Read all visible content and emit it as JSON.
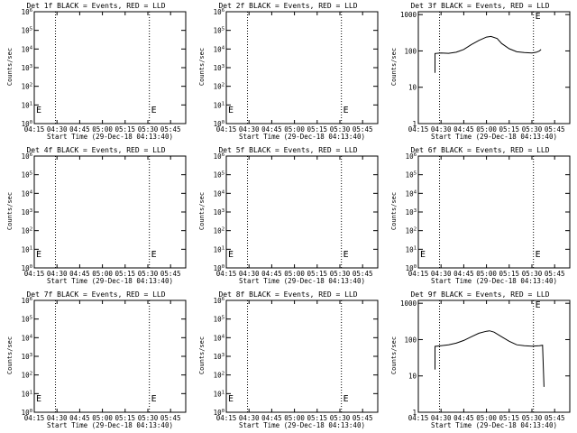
{
  "chart_data": [
    {
      "type": "line",
      "title": "Det 1f BLACK = Events, RED = LLD",
      "ylabel": "Counts/sec",
      "xlabel": "Start Time (29-Dec-18 04:13:40)",
      "x_ticks": [
        "04:15",
        "04:30",
        "04:45",
        "05:00",
        "05:15",
        "05:30",
        "05:45"
      ],
      "y_ticks": [
        "10^0",
        "10^1",
        "10^2",
        "10^3",
        "10^4",
        "10^5",
        "10^6"
      ],
      "y_scale": "log",
      "ylim": [
        1,
        1000000
      ],
      "xlim": [
        "04:15",
        "05:55"
      ],
      "marker_lines": [
        "04:29",
        "05:31"
      ],
      "markers": [
        {
          "label": "E",
          "x": "04:15"
        },
        {
          "label": "E",
          "x": "05:31"
        }
      ],
      "series": []
    },
    {
      "type": "line",
      "title": "Det 2f BLACK = Events, RED = LLD",
      "ylabel": "Counts/sec",
      "xlabel": "Start Time (29-Dec-18 04:13:40)",
      "x_ticks": [
        "04:15",
        "04:30",
        "04:45",
        "05:00",
        "05:15",
        "05:30",
        "05:45"
      ],
      "y_ticks": [
        "10^0",
        "10^1",
        "10^2",
        "10^3",
        "10^4",
        "10^5",
        "10^6"
      ],
      "y_scale": "log",
      "ylim": [
        1,
        1000000
      ],
      "xlim": [
        "04:15",
        "05:55"
      ],
      "marker_lines": [
        "04:29",
        "05:31"
      ],
      "markers": [
        {
          "label": "E",
          "x": "04:15"
        },
        {
          "label": "E",
          "x": "05:31"
        }
      ],
      "series": []
    },
    {
      "type": "line",
      "title": "Det 3f BLACK = Events, RED = LLD",
      "ylabel": "Counts/sec",
      "xlabel": "Start Time (29-Dec-18 04:13:40)",
      "x_ticks": [
        "04:15",
        "04:30",
        "04:45",
        "05:00",
        "05:15",
        "05:30",
        "05:45"
      ],
      "y_ticks": [
        "1",
        "10",
        "100",
        "1000"
      ],
      "y_scale": "log",
      "ylim": [
        1,
        1200
      ],
      "xlim": [
        "04:15",
        "05:55"
      ],
      "marker_lines": [
        "04:29",
        "05:31"
      ],
      "markers": [
        {
          "label": "E",
          "x": "05:31"
        }
      ],
      "series": [
        {
          "color": "#000000",
          "points": [
            [
              "04:26",
              25
            ],
            [
              "04:26",
              85
            ],
            [
              "04:30",
              88
            ],
            [
              "04:35",
              86
            ],
            [
              "04:40",
              92
            ],
            [
              "04:45",
              110
            ],
            [
              "04:50",
              150
            ],
            [
              "04:55",
              195
            ],
            [
              "05:00",
              240
            ],
            [
              "05:03",
              250
            ],
            [
              "05:07",
              220
            ],
            [
              "05:10",
              160
            ],
            [
              "05:15",
              115
            ],
            [
              "05:20",
              95
            ],
            [
              "05:25",
              90
            ],
            [
              "05:30",
              88
            ],
            [
              "05:33",
              92
            ],
            [
              "05:35",
              100
            ],
            [
              "05:36",
              110
            ]
          ]
        }
      ]
    },
    {
      "type": "line",
      "title": "Det 4f BLACK = Events, RED = LLD",
      "ylabel": "Counts/sec",
      "xlabel": "Start Time (29-Dec-18 04:13:40)",
      "x_ticks": [
        "04:15",
        "04:30",
        "04:45",
        "05:00",
        "05:15",
        "05:30",
        "05:45"
      ],
      "y_ticks": [
        "10^0",
        "10^1",
        "10^2",
        "10^3",
        "10^4",
        "10^5",
        "10^6"
      ],
      "y_scale": "log",
      "ylim": [
        1,
        1000000
      ],
      "xlim": [
        "04:15",
        "05:55"
      ],
      "marker_lines": [
        "04:29",
        "05:31"
      ],
      "markers": [
        {
          "label": "E",
          "x": "04:15"
        },
        {
          "label": "E",
          "x": "05:31"
        }
      ],
      "series": []
    },
    {
      "type": "line",
      "title": "Det 5f BLACK = Events, RED = LLD",
      "ylabel": "Counts/sec",
      "xlabel": "Start Time (29-Dec-18 04:13:40)",
      "x_ticks": [
        "04:15",
        "04:30",
        "04:45",
        "05:00",
        "05:15",
        "05:30",
        "05:45"
      ],
      "y_ticks": [
        "10^0",
        "10^1",
        "10^2",
        "10^3",
        "10^4",
        "10^5",
        "10^6"
      ],
      "y_scale": "log",
      "ylim": [
        1,
        1000000
      ],
      "xlim": [
        "04:15",
        "05:55"
      ],
      "marker_lines": [
        "04:29",
        "05:31"
      ],
      "markers": [
        {
          "label": "E",
          "x": "04:15"
        },
        {
          "label": "E",
          "x": "05:31"
        }
      ],
      "series": []
    },
    {
      "type": "line",
      "title": "Det 6f BLACK = Events, RED = LLD",
      "ylabel": "Counts/sec",
      "xlabel": "Start Time (29-Dec-18 04:13:40)",
      "x_ticks": [
        "04:15",
        "04:30",
        "04:45",
        "05:00",
        "05:15",
        "05:30",
        "05:45"
      ],
      "y_ticks": [
        "10^0",
        "10^1",
        "10^2",
        "10^3",
        "10^4",
        "10^5",
        "10^6"
      ],
      "y_scale": "log",
      "ylim": [
        1,
        1000000
      ],
      "xlim": [
        "04:15",
        "05:55"
      ],
      "marker_lines": [
        "04:29",
        "05:31"
      ],
      "markers": [
        {
          "label": "E",
          "x": "04:15"
        },
        {
          "label": "E",
          "x": "05:31"
        }
      ],
      "series": []
    },
    {
      "type": "line",
      "title": "Det 7f BLACK = Events, RED = LLD",
      "ylabel": "Counts/sec",
      "xlabel": "Start Time (29-Dec-18 04:13:40)",
      "x_ticks": [
        "04:15",
        "04:30",
        "04:45",
        "05:00",
        "05:15",
        "05:30",
        "05:45"
      ],
      "y_ticks": [
        "10^0",
        "10^1",
        "10^2",
        "10^3",
        "10^4",
        "10^5",
        "10^6"
      ],
      "y_scale": "log",
      "ylim": [
        1,
        1000000
      ],
      "xlim": [
        "04:15",
        "05:55"
      ],
      "marker_lines": [
        "04:29",
        "05:31"
      ],
      "markers": [
        {
          "label": "E",
          "x": "04:15"
        },
        {
          "label": "E",
          "x": "05:31"
        }
      ],
      "series": []
    },
    {
      "type": "line",
      "title": "Det 8f BLACK = Events, RED = LLD",
      "ylabel": "Counts/sec",
      "xlabel": "Start Time (29-Dec-18 04:13:40)",
      "x_ticks": [
        "04:15",
        "04:30",
        "04:45",
        "05:00",
        "05:15",
        "05:30",
        "05:45"
      ],
      "y_ticks": [
        "10^0",
        "10^1",
        "10^2",
        "10^3",
        "10^4",
        "10^5",
        "10^6"
      ],
      "y_scale": "log",
      "ylim": [
        1,
        1000000
      ],
      "xlim": [
        "04:15",
        "05:55"
      ],
      "marker_lines": [
        "04:29",
        "05:31"
      ],
      "markers": [
        {
          "label": "E",
          "x": "04:15"
        },
        {
          "label": "E",
          "x": "05:31"
        }
      ],
      "series": []
    },
    {
      "type": "line",
      "title": "Det 9f BLACK = Events, RED = LLD",
      "ylabel": "Counts/sec",
      "xlabel": "Start Time (29-Dec-18 04:13:40)",
      "x_ticks": [
        "04:15",
        "04:30",
        "04:45",
        "05:00",
        "05:15",
        "05:30",
        "05:45"
      ],
      "y_ticks": [
        "1",
        "10",
        "100",
        "1000"
      ],
      "y_scale": "log",
      "ylim": [
        1,
        1200
      ],
      "xlim": [
        "04:15",
        "05:55"
      ],
      "marker_lines": [
        "04:29",
        "05:31"
      ],
      "markers": [
        {
          "label": "E",
          "x": "05:31"
        }
      ],
      "series": [
        {
          "color": "#000000",
          "points": [
            [
              "04:26",
              15
            ],
            [
              "04:26",
              65
            ],
            [
              "04:30",
              68
            ],
            [
              "04:35",
              72
            ],
            [
              "04:40",
              80
            ],
            [
              "04:45",
              95
            ],
            [
              "04:50",
              120
            ],
            [
              "04:55",
              150
            ],
            [
              "05:00",
              170
            ],
            [
              "05:02",
              175
            ],
            [
              "05:05",
              160
            ],
            [
              "05:10",
              120
            ],
            [
              "05:15",
              90
            ],
            [
              "05:20",
              72
            ],
            [
              "05:25",
              68
            ],
            [
              "05:30",
              66
            ],
            [
              "05:35",
              68
            ],
            [
              "05:37",
              70
            ],
            [
              "05:38",
              5
            ]
          ]
        }
      ]
    }
  ]
}
